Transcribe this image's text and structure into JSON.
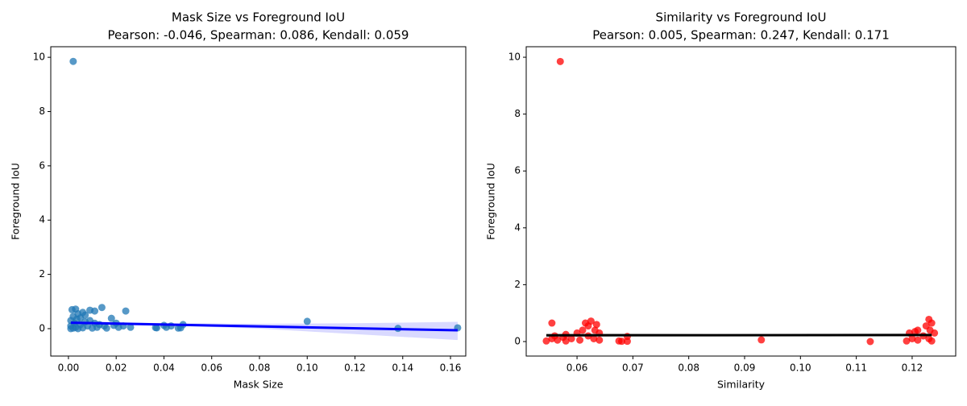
{
  "chart_data": [
    {
      "type": "scatter",
      "title": "Mask Size vs Foreground IoU",
      "subtitle": "Pearson: -0.046, Spearman: 0.086, Kendall: 0.059",
      "x_label": "Mask Size",
      "y_label": "Foreground IoU",
      "xlim": [
        -0.0074,
        0.1664
      ],
      "ylim": [
        -1.01,
        10.39
      ],
      "xticks": [
        {
          "value": 0,
          "label": "0.00"
        },
        0.02,
        0.04,
        0.06,
        0.08,
        {
          "value": 0.1,
          "label": "0.10"
        },
        0.12,
        0.14,
        0.16
      ],
      "yticks": [
        0,
        2,
        4,
        6,
        8,
        10
      ],
      "series": [
        {
          "color": "#1f77b4",
          "x": [
            0.001,
            0.001,
            0.001,
            0.0015,
            0.002,
            0.002,
            0.0025,
            0.003,
            0.003,
            0.0035,
            0.004,
            0.004,
            0.005,
            0.005,
            0.006,
            0.006,
            0.007,
            0.007,
            0.008,
            0.009,
            0.009,
            0.01,
            0.011,
            0.011,
            0.012,
            0.013,
            0.015,
            0.016,
            0.018,
            0.019,
            0.02,
            0.021,
            0.023,
            0.026,
            0.002,
            0.014,
            0.024,
            0.0365,
            0.037,
            0.04,
            0.041,
            0.043,
            0.046,
            0.047,
            0.048,
            0.1,
            0.138,
            0.163
          ],
          "values": [
            0,
            0.3,
            0.1,
            0.7,
            0.45,
            0.02,
            0.2,
            0.72,
            0.05,
            0.35,
            0.55,
            0,
            0.15,
            0.4,
            0.6,
            0.03,
            0.25,
            0.5,
            0.1,
            0.68,
            0.3,
            0.02,
            0.65,
            0.2,
            0.05,
            0.15,
            0.1,
            0.02,
            0.38,
            0.12,
            0.2,
            0.05,
            0.1,
            0.05,
            9.85,
            0.78,
            0.65,
            0.04,
            0.03,
            0.12,
            0.05,
            0.1,
            0.02,
            0.03,
            0.15,
            0.27,
            0.01,
            0.03
          ]
        }
      ],
      "regression": {
        "color": "#0000ff",
        "x": [
          0.001,
          0.163
        ],
        "values": [
          0.22,
          -0.06
        ]
      },
      "band": {
        "color": "#0000ff",
        "x": [
          0.001,
          0.04,
          0.08,
          0.12,
          0.163
        ],
        "lower": [
          0.17,
          0.12,
          0.0,
          -0.2,
          -0.42
        ],
        "upper": [
          0.28,
          0.2,
          0.18,
          0.2,
          0.25
        ]
      }
    },
    {
      "type": "scatter",
      "title": "Similarity vs Foreground IoU",
      "subtitle": "Pearson: 0.005, Spearman: 0.247, Kendall: 0.171",
      "x_label": "Similarity",
      "y_label": "Foreground IoU",
      "xlim": [
        0.0509,
        0.1278
      ],
      "ylim": [
        -0.51,
        10.37
      ],
      "xticks": [
        0.06,
        0.07,
        0.08,
        0.09,
        {
          "value": 0.1,
          "label": "0.10"
        },
        0.11,
        0.12
      ],
      "yticks": [
        0,
        2,
        4,
        6,
        8,
        10
      ],
      "series": [
        {
          "color": "#ff0000",
          "x": [
            0.0545,
            0.0555,
            0.0555,
            0.056,
            0.0565,
            0.057,
            0.0575,
            0.058,
            0.058,
            0.059,
            0.06,
            0.0605,
            0.061,
            0.0615,
            0.062,
            0.062,
            0.0625,
            0.063,
            0.0632,
            0.0635,
            0.064,
            0.064,
            0.0675,
            0.068,
            0.069,
            0.069,
            0.093,
            0.1125,
            0.119,
            0.1195,
            0.12,
            0.1205,
            0.121,
            0.121,
            0.122,
            0.1225,
            0.123,
            0.123,
            0.1232,
            0.1235,
            0.1235,
            0.124
          ],
          "values": [
            0.02,
            0.65,
            0.1,
            0.2,
            0.05,
            9.85,
            0.15,
            0.25,
            0.02,
            0.1,
            0.3,
            0.05,
            0.4,
            0.65,
            0.2,
            0.55,
            0.72,
            0.1,
            0.4,
            0.6,
            0.3,
            0.05,
            0.02,
            0.01,
            0.18,
            0.01,
            0.06,
            0,
            0.02,
            0.3,
            0.1,
            0.35,
            0.4,
            0.05,
            0.2,
            0.55,
            0.78,
            0.1,
            0.4,
            0.65,
            0.02,
            0.3
          ]
        }
      ],
      "regression": {
        "color": "#000000",
        "x": [
          0.0545,
          0.1235
        ],
        "values": [
          0.22,
          0.23
        ]
      },
      "band": {
        "color": "#808080",
        "x": [
          0.0545,
          0.09,
          0.1235
        ],
        "lower": [
          0.15,
          0.19,
          0.17
        ],
        "upper": [
          0.3,
          0.26,
          0.29
        ]
      }
    }
  ]
}
